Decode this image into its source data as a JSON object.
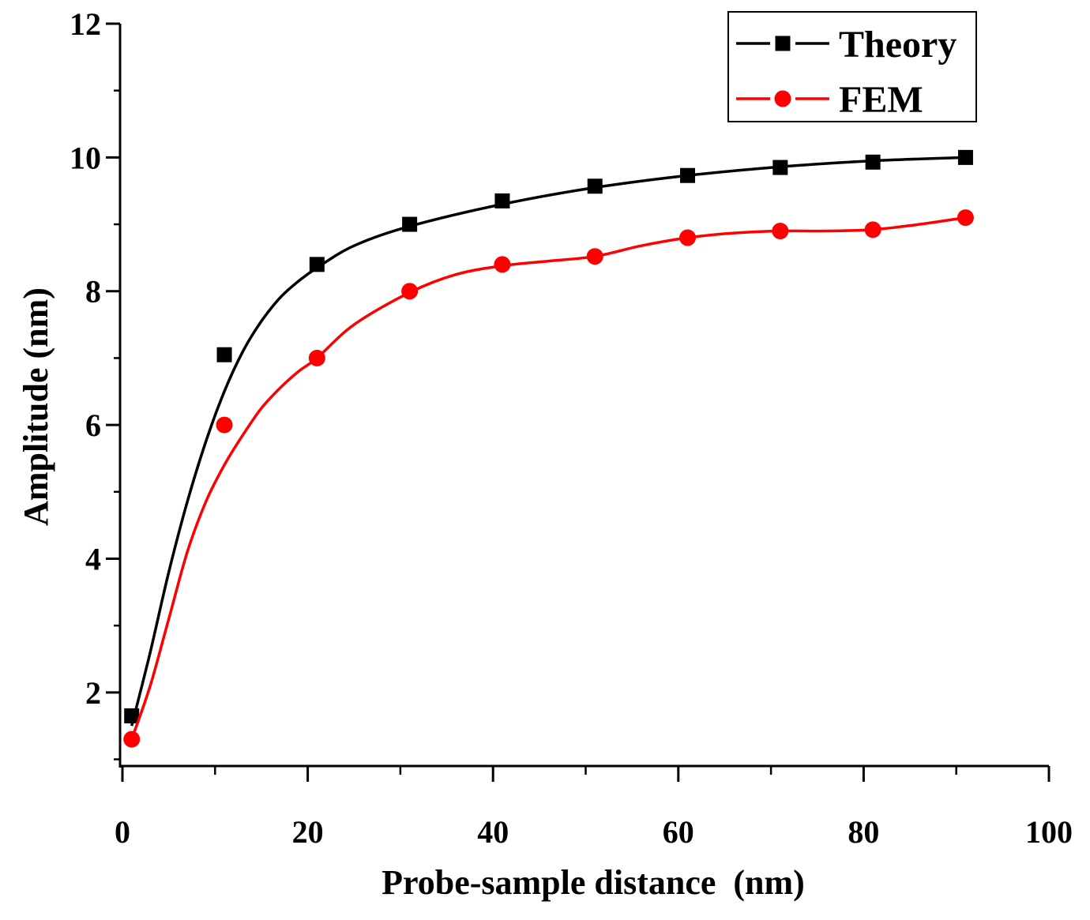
{
  "chart_data": {
    "type": "line",
    "title": "",
    "xlabel": "Probe-sample distance  (nm)",
    "ylabel": "Amplitude (nm)",
    "xlim": [
      0,
      100
    ],
    "ylim": [
      0.9,
      12
    ],
    "x_ticks": [
      0,
      20,
      40,
      60,
      80,
      100
    ],
    "x_tick_labels": [
      "0",
      "20",
      "40",
      "60",
      "80",
      "100"
    ],
    "x_minor_step": 10,
    "y_ticks": [
      2,
      4,
      6,
      8,
      10,
      12
    ],
    "y_tick_labels": [
      "2",
      "4",
      "6",
      "8",
      "10",
      "12"
    ],
    "y_minor_step": 1,
    "grid": false,
    "legend_position": "top-right",
    "series": [
      {
        "name": "Theory",
        "color": "#000000",
        "marker": "square",
        "x": [
          1,
          11,
          21,
          31,
          41,
          51,
          61,
          71,
          81,
          91
        ],
        "y": [
          1.65,
          7.05,
          8.4,
          9.0,
          9.35,
          9.57,
          9.73,
          9.85,
          9.93,
          10.0
        ],
        "fit": [
          [
            1,
            1.5
          ],
          [
            3,
            2.6
          ],
          [
            5,
            3.8
          ],
          [
            7,
            4.85
          ],
          [
            9,
            5.75
          ],
          [
            11,
            6.5
          ],
          [
            13,
            7.1
          ],
          [
            15,
            7.55
          ],
          [
            17,
            7.9
          ],
          [
            19,
            8.15
          ],
          [
            21,
            8.35
          ],
          [
            25,
            8.68
          ],
          [
            31,
            8.97
          ],
          [
            41,
            9.3
          ],
          [
            51,
            9.55
          ],
          [
            61,
            9.73
          ],
          [
            71,
            9.86
          ],
          [
            81,
            9.95
          ],
          [
            91,
            10.0
          ]
        ]
      },
      {
        "name": "FEM",
        "color": "#ff0000",
        "marker": "circle",
        "x": [
          1,
          11,
          21,
          31,
          41,
          51,
          61,
          71,
          81,
          91
        ],
        "y": [
          1.3,
          6.0,
          7.0,
          8.0,
          8.4,
          8.52,
          8.8,
          8.9,
          8.92,
          9.1
        ],
        "fit": [
          [
            1,
            1.3
          ],
          [
            3,
            2.1
          ],
          [
            5,
            3.1
          ],
          [
            7,
            4.1
          ],
          [
            9,
            4.85
          ],
          [
            11,
            5.4
          ],
          [
            13,
            5.85
          ],
          [
            15,
            6.25
          ],
          [
            17,
            6.55
          ],
          [
            19,
            6.8
          ],
          [
            21,
            7.0
          ],
          [
            25,
            7.5
          ],
          [
            31,
            7.98
          ],
          [
            36,
            8.25
          ],
          [
            41,
            8.38
          ],
          [
            46,
            8.45
          ],
          [
            51,
            8.52
          ],
          [
            56,
            8.68
          ],
          [
            61,
            8.8
          ],
          [
            66,
            8.87
          ],
          [
            71,
            8.9
          ],
          [
            76,
            8.9
          ],
          [
            81,
            8.92
          ],
          [
            86,
            9.0
          ],
          [
            91,
            9.1
          ]
        ]
      }
    ]
  }
}
